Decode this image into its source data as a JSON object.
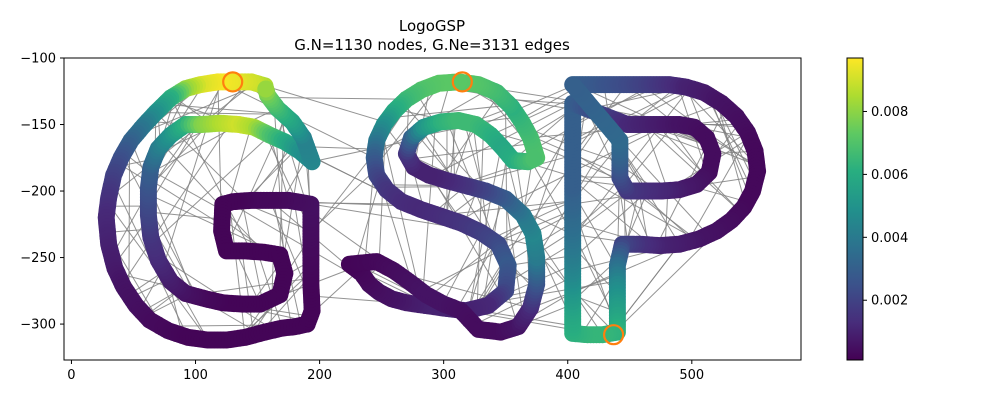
{
  "chart_data": {
    "type": "graph-scatter",
    "title": "LogoGSP",
    "subtitle": "G.N=1130 nodes, G.Ne=3131 edges",
    "x_ticks": [
      0,
      100,
      200,
      300,
      400,
      500
    ],
    "y_ticks": [
      -100,
      -150,
      -200,
      -250,
      -300
    ],
    "xlim": [
      -6,
      588
    ],
    "ylim": [
      -327,
      -100
    ],
    "colorbar": {
      "colormap": "viridis",
      "range": [
        0.0001,
        0.0097
      ],
      "ticks": [
        0.002,
        0.004,
        0.006,
        0.008
      ],
      "tick_labels": [
        "0.002",
        "0.004",
        "0.006",
        "0.008"
      ]
    },
    "edge_color": "#808080",
    "highlighted_nodes": [
      {
        "x": 130,
        "y": -118
      },
      {
        "x": 315,
        "y": -118
      },
      {
        "x": 437,
        "y": -308
      }
    ],
    "letters": [
      {
        "letter": "G",
        "outline": [
          [
            156,
            -121
          ],
          [
            145,
            -118
          ],
          [
            130,
            -118
          ],
          [
            118,
            -118
          ],
          [
            104,
            -120
          ],
          [
            92,
            -123
          ],
          [
            80,
            -130
          ],
          [
            68,
            -141
          ],
          [
            58,
            -151
          ],
          [
            48,
            -162
          ],
          [
            40,
            -175
          ],
          [
            34,
            -188
          ],
          [
            30,
            -205
          ],
          [
            28,
            -220
          ],
          [
            30,
            -240
          ],
          [
            35,
            -258
          ],
          [
            42,
            -272
          ],
          [
            52,
            -286
          ],
          [
            63,
            -297
          ],
          [
            78,
            -305
          ],
          [
            94,
            -310
          ],
          [
            110,
            -312
          ],
          [
            125,
            -312
          ],
          [
            140,
            -310
          ],
          [
            156,
            -306
          ],
          [
            170,
            -303
          ],
          [
            180,
            -302
          ],
          [
            190,
            -300
          ],
          [
            194,
            -290
          ],
          [
            193,
            -270
          ],
          [
            193,
            -250
          ],
          [
            193,
            -230
          ],
          [
            193,
            -210
          ],
          [
            175,
            -207
          ],
          [
            160,
            -207
          ],
          [
            145,
            -207
          ],
          [
            130,
            -208
          ],
          [
            122,
            -210
          ],
          [
            121,
            -230
          ],
          [
            125,
            -245
          ],
          [
            140,
            -245
          ],
          [
            155,
            -246
          ],
          [
            168,
            -248
          ],
          [
            172,
            -262
          ],
          [
            168,
            -278
          ],
          [
            152,
            -285
          ],
          [
            138,
            -285
          ],
          [
            122,
            -284
          ],
          [
            108,
            -281
          ],
          [
            92,
            -277
          ],
          [
            80,
            -268
          ],
          [
            70,
            -252
          ],
          [
            64,
            -235
          ],
          [
            62,
            -218
          ],
          [
            62,
            -198
          ],
          [
            64,
            -182
          ],
          [
            70,
            -168
          ],
          [
            80,
            -158
          ],
          [
            92,
            -150
          ],
          [
            105,
            -150
          ],
          [
            120,
            -149
          ],
          [
            135,
            -150
          ],
          [
            147,
            -152
          ],
          [
            160,
            -158
          ],
          [
            172,
            -163
          ],
          [
            184,
            -170
          ],
          [
            194,
            -178
          ],
          [
            187,
            -160
          ],
          [
            178,
            -148
          ],
          [
            166,
            -138
          ],
          [
            158,
            -128
          ]
        ],
        "values": [
          0.0085,
          0.009,
          0.0094,
          0.0096,
          0.0092,
          0.0082,
          0.0062,
          0.005,
          0.004,
          0.0032,
          0.0025,
          0.002,
          0.0015,
          0.0012,
          0.001,
          0.0008,
          0.0006,
          0.0005,
          0.0004,
          0.0003,
          0.0002,
          0.0002,
          0.0002,
          0.0002,
          0.0002,
          0.0002,
          0.0002,
          0.0002,
          0.0002,
          0.0002,
          0.0003,
          0.0004,
          0.0005,
          0.0004,
          0.0003,
          0.0003,
          0.0002,
          0.0002,
          0.0002,
          0.0002,
          0.0002,
          0.0002,
          0.0002,
          0.0002,
          0.0002,
          0.0002,
          0.0002,
          0.0002,
          0.0003,
          0.0005,
          0.0008,
          0.0012,
          0.0015,
          0.002,
          0.0025,
          0.003,
          0.004,
          0.005,
          0.0062,
          0.0078,
          0.0085,
          0.009,
          0.0085,
          0.007,
          0.006,
          0.005,
          0.0045,
          0.0043,
          0.0055,
          0.0065,
          0.0075,
          0.008
        ]
      },
      {
        "letter": "S",
        "outline": [
          [
            375,
            -175
          ],
          [
            370,
            -160
          ],
          [
            363,
            -148
          ],
          [
            355,
            -137
          ],
          [
            343,
            -126
          ],
          [
            328,
            -120
          ],
          [
            312,
            -118
          ],
          [
            296,
            -119
          ],
          [
            282,
            -124
          ],
          [
            270,
            -131
          ],
          [
            260,
            -140
          ],
          [
            252,
            -150
          ],
          [
            246,
            -162
          ],
          [
            244,
            -175
          ],
          [
            246,
            -188
          ],
          [
            254,
            -199
          ],
          [
            266,
            -208
          ],
          [
            282,
            -214
          ],
          [
            298,
            -219
          ],
          [
            314,
            -224
          ],
          [
            330,
            -231
          ],
          [
            344,
            -240
          ],
          [
            352,
            -256
          ],
          [
            350,
            -275
          ],
          [
            336,
            -286
          ],
          [
            318,
            -290
          ],
          [
            300,
            -288
          ],
          [
            285,
            -286
          ],
          [
            270,
            -284
          ],
          [
            258,
            -281
          ],
          [
            248,
            -276
          ],
          [
            240,
            -270
          ],
          [
            234,
            -262
          ],
          [
            224,
            -255
          ],
          [
            246,
            -253
          ],
          [
            260,
            -260
          ],
          [
            272,
            -268
          ],
          [
            286,
            -278
          ],
          [
            300,
            -285
          ],
          [
            314,
            -290
          ],
          [
            328,
            -304
          ],
          [
            346,
            -306
          ],
          [
            360,
            -302
          ],
          [
            370,
            -288
          ],
          [
            375,
            -270
          ],
          [
            375,
            -250
          ],
          [
            372,
            -232
          ],
          [
            364,
            -218
          ],
          [
            350,
            -206
          ],
          [
            334,
            -200
          ],
          [
            318,
            -196
          ],
          [
            302,
            -192
          ],
          [
            288,
            -188
          ],
          [
            276,
            -182
          ],
          [
            270,
            -172
          ],
          [
            274,
            -160
          ],
          [
            284,
            -152
          ],
          [
            298,
            -148
          ],
          [
            312,
            -147
          ],
          [
            326,
            -150
          ],
          [
            338,
            -158
          ],
          [
            348,
            -168
          ],
          [
            356,
            -177
          ],
          [
            368,
            -178
          ]
        ],
        "values": [
          0.007,
          0.0068,
          0.0065,
          0.0062,
          0.0066,
          0.007,
          0.0072,
          0.0072,
          0.007,
          0.0066,
          0.006,
          0.005,
          0.004,
          0.003,
          0.0022,
          0.0016,
          0.0013,
          0.0012,
          0.0013,
          0.0015,
          0.0018,
          0.0022,
          0.0028,
          0.0022,
          0.0012,
          0.001,
          0.001,
          0.001,
          0.0008,
          0.0006,
          0.0005,
          0.0004,
          0.0003,
          0.0002,
          0.0003,
          0.0004,
          0.0005,
          0.0006,
          0.0006,
          0.0005,
          0.0004,
          0.0004,
          0.0006,
          0.0012,
          0.0025,
          0.004,
          0.0045,
          0.004,
          0.003,
          0.0022,
          0.0016,
          0.0012,
          0.001,
          0.001,
          0.0015,
          0.003,
          0.005,
          0.0062,
          0.0066,
          0.0066,
          0.0062,
          0.0058,
          0.006,
          0.0066
        ]
      },
      {
        "letter": "P",
        "outline": [
          [
            404,
            -120
          ],
          [
            420,
            -120
          ],
          [
            436,
            -120
          ],
          [
            452,
            -120
          ],
          [
            468,
            -120
          ],
          [
            482,
            -120
          ],
          [
            496,
            -122
          ],
          [
            510,
            -126
          ],
          [
            524,
            -134
          ],
          [
            536,
            -144
          ],
          [
            545,
            -156
          ],
          [
            551,
            -170
          ],
          [
            553,
            -185
          ],
          [
            549,
            -200
          ],
          [
            542,
            -212
          ],
          [
            532,
            -222
          ],
          [
            520,
            -230
          ],
          [
            506,
            -236
          ],
          [
            490,
            -240
          ],
          [
            474,
            -241
          ],
          [
            458,
            -240
          ],
          [
            444,
            -240
          ],
          [
            440,
            -256
          ],
          [
            440,
            -270
          ],
          [
            440,
            -284
          ],
          [
            440,
            -298
          ],
          [
            440,
            -306
          ],
          [
            428,
            -308
          ],
          [
            416,
            -308
          ],
          [
            404,
            -307
          ],
          [
            404,
            -292
          ],
          [
            404,
            -276
          ],
          [
            404,
            -260
          ],
          [
            404,
            -244
          ],
          [
            404,
            -228
          ],
          [
            404,
            -212
          ],
          [
            404,
            -196
          ],
          [
            404,
            -180
          ],
          [
            404,
            -164
          ],
          [
            404,
            -148
          ],
          [
            404,
            -134
          ],
          [
            448,
            -150
          ],
          [
            462,
            -150
          ],
          [
            476,
            -150
          ],
          [
            490,
            -150
          ],
          [
            502,
            -152
          ],
          [
            512,
            -160
          ],
          [
            517,
            -172
          ],
          [
            514,
            -186
          ],
          [
            504,
            -195
          ],
          [
            490,
            -199
          ],
          [
            476,
            -200
          ],
          [
            462,
            -200
          ],
          [
            448,
            -200
          ],
          [
            442,
            -190
          ],
          [
            442,
            -176
          ],
          [
            442,
            -162
          ]
        ],
        "values": [
          0.003,
          0.0028,
          0.0025,
          0.0022,
          0.0018,
          0.0014,
          0.001,
          0.0008,
          0.0006,
          0.0005,
          0.0004,
          0.0003,
          0.0003,
          0.0003,
          0.0003,
          0.0004,
          0.0005,
          0.0006,
          0.0008,
          0.001,
          0.0014,
          0.002,
          0.0035,
          0.0045,
          0.0052,
          0.0058,
          0.0062,
          0.0064,
          0.0064,
          0.0062,
          0.0058,
          0.0052,
          0.0045,
          0.004,
          0.0036,
          0.0033,
          0.003,
          0.003,
          0.003,
          0.003,
          0.003,
          0.0012,
          0.001,
          0.0008,
          0.0006,
          0.0005,
          0.0004,
          0.0004,
          0.0004,
          0.0006,
          0.0008,
          0.0011,
          0.0013,
          0.0016,
          0.0022,
          0.003,
          0.0034
        ]
      }
    ]
  }
}
